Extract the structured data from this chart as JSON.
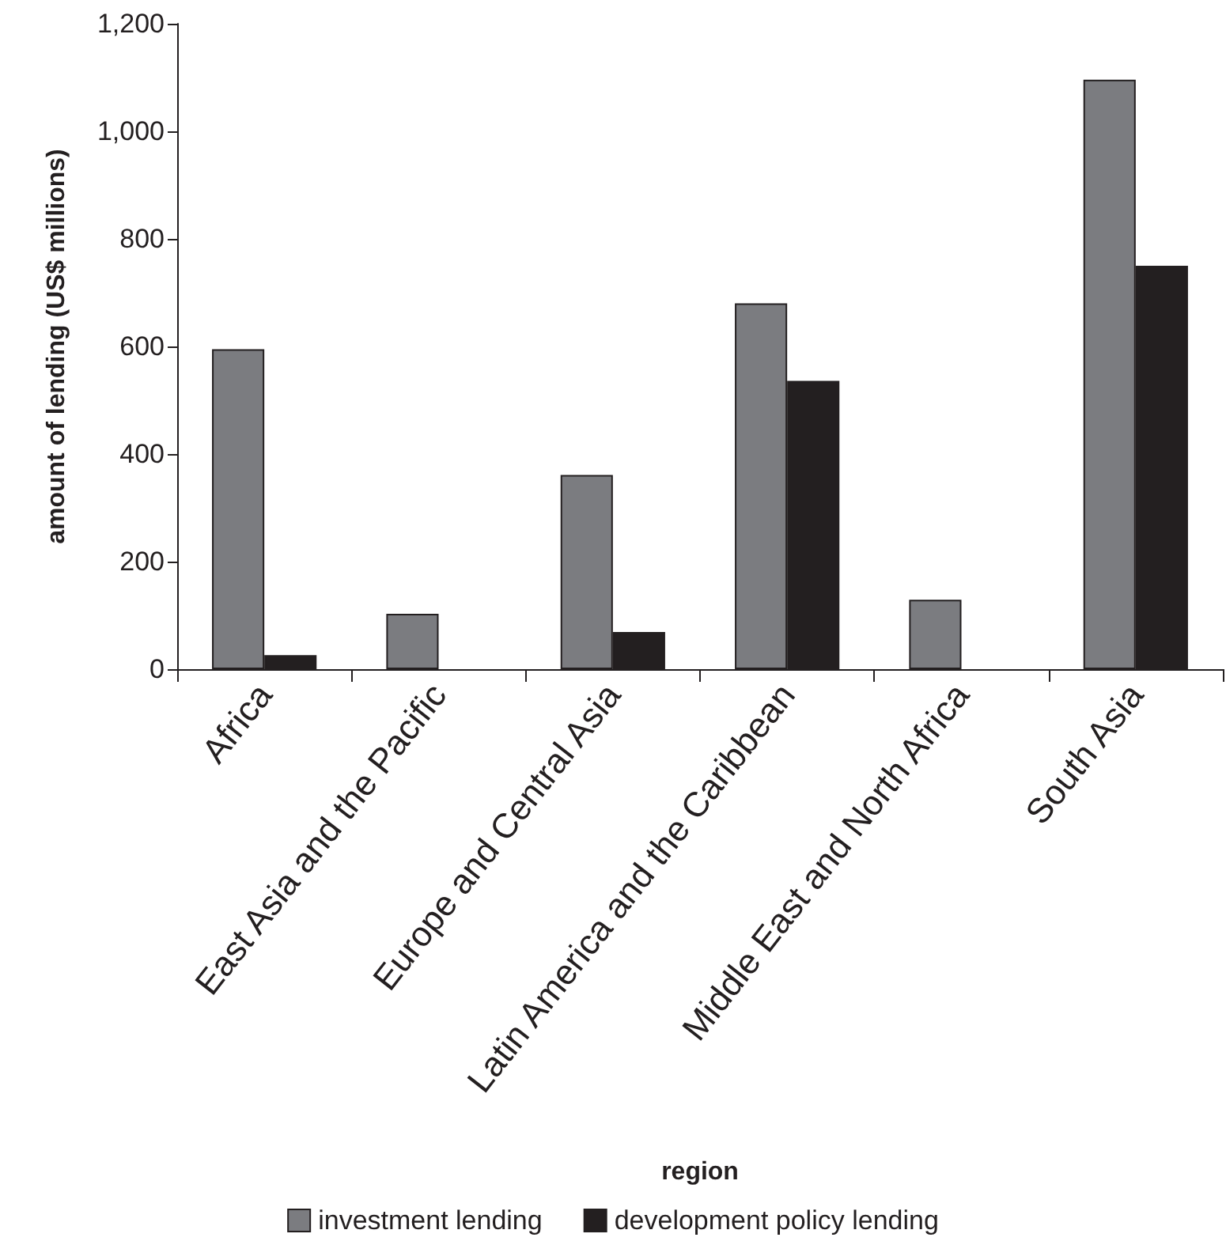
{
  "chart_data": {
    "type": "bar",
    "xlabel": "region",
    "ylabel": "amount of lending (US$ millions)",
    "categories": [
      "Africa",
      "East Asia and the Pacific",
      "Europe and Central Asia",
      "Latin America and the Caribbean",
      "Middle East and North Africa",
      "South Asia"
    ],
    "series": [
      {
        "name": "investment lending",
        "color": "#7b7c80",
        "values": [
          595,
          103,
          361,
          680,
          129,
          1096
        ]
      },
      {
        "name": "development policy lending",
        "color": "#231f20",
        "values": [
          26,
          null,
          69,
          536,
          null,
          750
        ]
      }
    ],
    "ylim": [
      0,
      1200
    ],
    "yticks": [
      0,
      200,
      400,
      600,
      800,
      {
        "value": 1000,
        "label": "1,000"
      },
      {
        "value": 1200,
        "label": "1,200"
      }
    ],
    "grid": false,
    "legend": "bottom"
  }
}
